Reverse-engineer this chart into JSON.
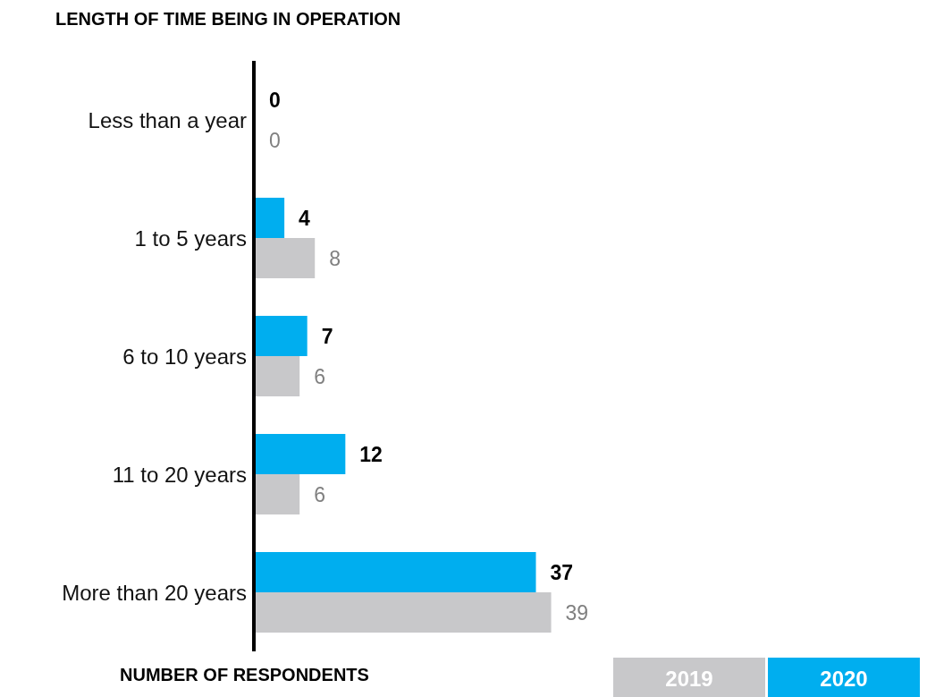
{
  "chart_data": {
    "type": "bar",
    "orientation": "horizontal",
    "title": "LENGTH OF TIME BEING IN OPERATION",
    "xlabel": "NUMBER OF RESPONDENTS",
    "categories": [
      "Less than a year",
      "1 to 5 years",
      "6 to 10 years",
      "11 to 20 years",
      "More than 20 years"
    ],
    "series": [
      {
        "name": "2020",
        "color": "#00aeef",
        "values": [
          0,
          4,
          7,
          12,
          37
        ]
      },
      {
        "name": "2019",
        "color": "#c8c8ca",
        "values": [
          0,
          8,
          6,
          6,
          39
        ]
      }
    ],
    "data_labels": true,
    "legend": "bottom right"
  }
}
